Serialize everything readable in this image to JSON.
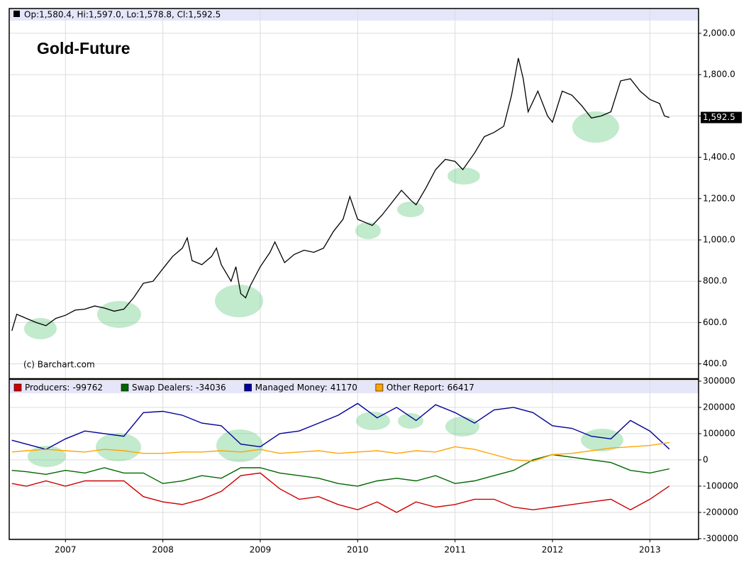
{
  "chart_data": [
    {
      "type": "line",
      "title": "Gold-Future",
      "header": "Op:1,580.4, Hi:1,597.0, Lo:1,578.8, Cl:1,592.5",
      "source": "(c) Barchart.com",
      "color": "#000000",
      "x": [
        2006.45,
        2006.5,
        2006.6,
        2006.7,
        2006.8,
        2006.9,
        2007.0,
        2007.1,
        2007.2,
        2007.3,
        2007.4,
        2007.5,
        2007.6,
        2007.7,
        2007.8,
        2007.9,
        2008.0,
        2008.1,
        2008.2,
        2008.25,
        2008.3,
        2008.4,
        2008.5,
        2008.55,
        2008.6,
        2008.7,
        2008.75,
        2008.8,
        2008.85,
        2008.9,
        2009.0,
        2009.1,
        2009.15,
        2009.25,
        2009.35,
        2009.45,
        2009.55,
        2009.65,
        2009.75,
        2009.85,
        2009.92,
        2010.0,
        2010.1,
        2010.15,
        2010.25,
        2010.35,
        2010.45,
        2010.55,
        2010.6,
        2010.7,
        2010.8,
        2010.9,
        2011.0,
        2011.08,
        2011.2,
        2011.3,
        2011.4,
        2011.5,
        2011.58,
        2011.65,
        2011.7,
        2011.75,
        2011.85,
        2011.95,
        2012.0,
        2012.1,
        2012.2,
        2012.3,
        2012.4,
        2012.5,
        2012.6,
        2012.7,
        2012.8,
        2012.9,
        2013.0,
        2013.1,
        2013.15,
        2013.2
      ],
      "values": [
        560,
        640,
        620,
        600,
        585,
        620,
        635,
        660,
        665,
        680,
        670,
        655,
        665,
        720,
        790,
        800,
        860,
        920,
        960,
        1010,
        900,
        880,
        920,
        960,
        880,
        800,
        870,
        740,
        720,
        780,
        870,
        940,
        990,
        890,
        930,
        950,
        940,
        960,
        1040,
        1100,
        1210,
        1100,
        1080,
        1070,
        1120,
        1180,
        1240,
        1190,
        1170,
        1250,
        1340,
        1390,
        1380,
        1340,
        1420,
        1500,
        1520,
        1550,
        1700,
        1880,
        1780,
        1620,
        1720,
        1600,
        1570,
        1720,
        1700,
        1650,
        1590,
        1600,
        1620,
        1770,
        1780,
        1720,
        1680,
        1660,
        1600,
        1592.5
      ],
      "value_labels": [
        null,
        null,
        null,
        null,
        null,
        null,
        null,
        null,
        null,
        null,
        null,
        null,
        null,
        null,
        null,
        null,
        null,
        null,
        null,
        null,
        null,
        null,
        null,
        null,
        null,
        null,
        null,
        null,
        null,
        null,
        null,
        null,
        null,
        null,
        null,
        null,
        null,
        null,
        null,
        null,
        null,
        null,
        null,
        null,
        null,
        null,
        null,
        null,
        null,
        null,
        null,
        null,
        null,
        null,
        null,
        null,
        null,
        null,
        null,
        null,
        null,
        null,
        null,
        null,
        null,
        null,
        null,
        null,
        null,
        null,
        null,
        null,
        null,
        null,
        null,
        null,
        null,
        "1,592.5"
      ],
      "xlim": [
        2006.43,
        2013.5
      ],
      "xticks": [
        2007,
        2008,
        2009,
        2010,
        2011,
        2012,
        2013
      ],
      "ylim": [
        330,
        2120
      ],
      "yticks": [
        {
          "value": 400,
          "label": "400.0"
        },
        {
          "value": 600,
          "label": "600.0"
        },
        {
          "value": 800,
          "label": "800.0"
        },
        {
          "value": 1000,
          "label": "1,000.0"
        },
        {
          "value": 1200,
          "label": "1,200.0"
        },
        {
          "value": 1400,
          "label": "1,400.0"
        },
        {
          "value": 1600,
          "label": "1,600.0"
        },
        {
          "value": 1800,
          "label": "1,800.0"
        },
        {
          "value": 2000,
          "label": "2,000.0"
        }
      ],
      "grid": true
    },
    {
      "type": "line",
      "x": [
        2006.45,
        2006.6,
        2006.8,
        2007.0,
        2007.2,
        2007.4,
        2007.6,
        2007.8,
        2008.0,
        2008.2,
        2008.4,
        2008.6,
        2008.8,
        2009.0,
        2009.2,
        2009.4,
        2009.6,
        2009.8,
        2010.0,
        2010.2,
        2010.4,
        2010.6,
        2010.8,
        2011.0,
        2011.2,
        2011.4,
        2011.6,
        2011.8,
        2012.0,
        2012.2,
        2012.4,
        2012.6,
        2012.8,
        2013.0,
        2013.2
      ],
      "series": [
        {
          "name": "Producers:",
          "color": "#cc0000",
          "values": [
            -90000,
            -100000,
            -80000,
            -100000,
            -80000,
            -80000,
            -80000,
            -140000,
            -160000,
            -170000,
            -150000,
            -120000,
            -60000,
            -50000,
            -110000,
            -150000,
            -140000,
            -170000,
            -190000,
            -160000,
            -200000,
            -160000,
            -180000,
            -170000,
            -150000,
            -150000,
            -180000,
            -190000,
            -180000,
            -170000,
            -160000,
            -150000,
            -190000,
            -150000,
            -99762
          ]
        },
        {
          "name": "Swap Dealers:",
          "color": "#006600",
          "values": [
            -40000,
            -45000,
            -55000,
            -40000,
            -50000,
            -30000,
            -50000,
            -50000,
            -90000,
            -80000,
            -60000,
            -70000,
            -30000,
            -30000,
            -50000,
            -60000,
            -70000,
            -90000,
            -100000,
            -80000,
            -70000,
            -80000,
            -60000,
            -90000,
            -80000,
            -60000,
            -40000,
            0,
            20000,
            10000,
            0,
            -10000,
            -40000,
            -50000,
            -34036
          ]
        },
        {
          "name": "Managed Money:",
          "color": "#000099",
          "values": [
            75000,
            60000,
            40000,
            80000,
            110000,
            100000,
            90000,
            180000,
            185000,
            170000,
            140000,
            130000,
            60000,
            50000,
            100000,
            110000,
            140000,
            170000,
            215000,
            160000,
            200000,
            150000,
            210000,
            180000,
            140000,
            190000,
            200000,
            180000,
            130000,
            120000,
            90000,
            80000,
            150000,
            110000,
            41170
          ]
        },
        {
          "name": "Other Report:",
          "color": "#ffa500",
          "values": [
            30000,
            35000,
            40000,
            35000,
            30000,
            40000,
            35000,
            25000,
            25000,
            30000,
            30000,
            35000,
            30000,
            40000,
            25000,
            30000,
            35000,
            25000,
            30000,
            35000,
            25000,
            35000,
            30000,
            50000,
            40000,
            20000,
            0,
            -5000,
            20000,
            25000,
            35000,
            45000,
            50000,
            55000,
            66417
          ]
        }
      ],
      "xlim": [
        2006.43,
        2013.5
      ],
      "xticks": [
        2007,
        2008,
        2009,
        2010,
        2011,
        2012,
        2013
      ],
      "ylim": [
        -303000,
        308000
      ],
      "yticks": [
        -300000,
        -200000,
        -100000,
        0,
        100000,
        200000,
        300000
      ],
      "grid": true
    }
  ]
}
